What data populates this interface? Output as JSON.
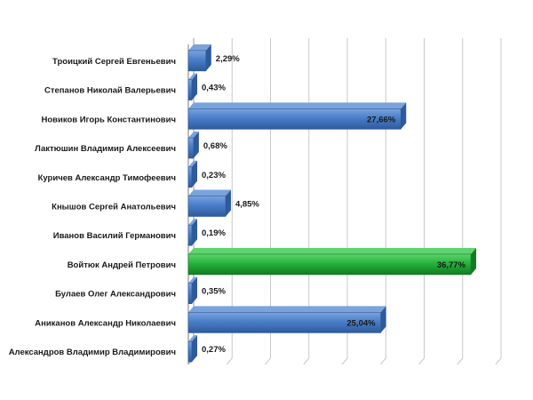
{
  "chart_data": {
    "type": "bar",
    "orientation": "horizontal",
    "title": "",
    "xlabel": "",
    "ylabel": "",
    "xlim": [
      0,
      40
    ],
    "grid": true,
    "legend": "none",
    "categories": [
      "Троицкий Сергей Евгеньевич",
      "Степанов Николай Валерьевич",
      "Новиков Игорь Константинович",
      "Лактюшин Владимир Алексеевич",
      "Куричев Александр Тимофеевич",
      "Кнышов Сергей Анатольевич",
      "Иванов Василий Германович",
      "Войтюк Андрей Петрович",
      "Булаев Олег Александрович",
      "Аниканов Александр Николаевич",
      "Александров Владимир Владимирович"
    ],
    "values": [
      2.29,
      0.43,
      27.66,
      0.68,
      0.23,
      4.85,
      0.19,
      36.77,
      0.35,
      25.04,
      0.27
    ],
    "value_labels": [
      "2,29%",
      "0,43%",
      "27,66%",
      "0,68%",
      "0,23%",
      "4,85%",
      "0,19%",
      "36,77%",
      "0,35%",
      "25,04%",
      "0,27%"
    ],
    "highlight_index": 7,
    "colors": {
      "bar": "#4a7ec9",
      "bar_dark": "#2e5a9b",
      "bar_light": "#7aa3dc",
      "highlight": "#25b33b",
      "highlight_dark": "#137a23",
      "highlight_light": "#5fd36e",
      "grid": "#c8c8c8",
      "text": "#1a1a1a"
    }
  }
}
